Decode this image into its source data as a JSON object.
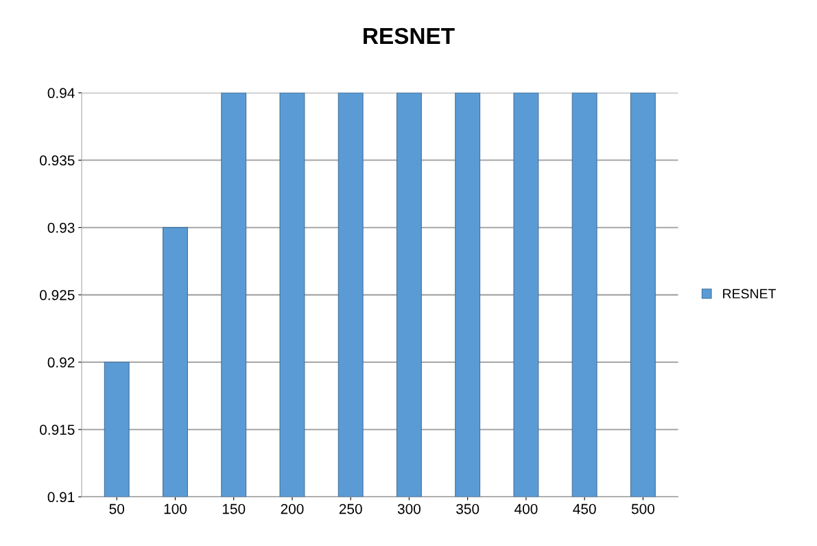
{
  "chart_data": {
    "type": "bar",
    "title": "RESNET",
    "categories": [
      "50",
      "100",
      "150",
      "200",
      "250",
      "300",
      "350",
      "400",
      "450",
      "500"
    ],
    "series": [
      {
        "name": "RESNET",
        "color": "#5b9bd5",
        "values": [
          0.92,
          0.93,
          0.94,
          0.94,
          0.94,
          0.94,
          0.94,
          0.94,
          0.94,
          0.94
        ]
      }
    ],
    "ylim": [
      0.91,
      0.94
    ],
    "yticks": [
      0.91,
      0.915,
      0.92,
      0.925,
      0.93,
      0.935,
      0.94
    ],
    "grid": "y",
    "legend": "right"
  }
}
